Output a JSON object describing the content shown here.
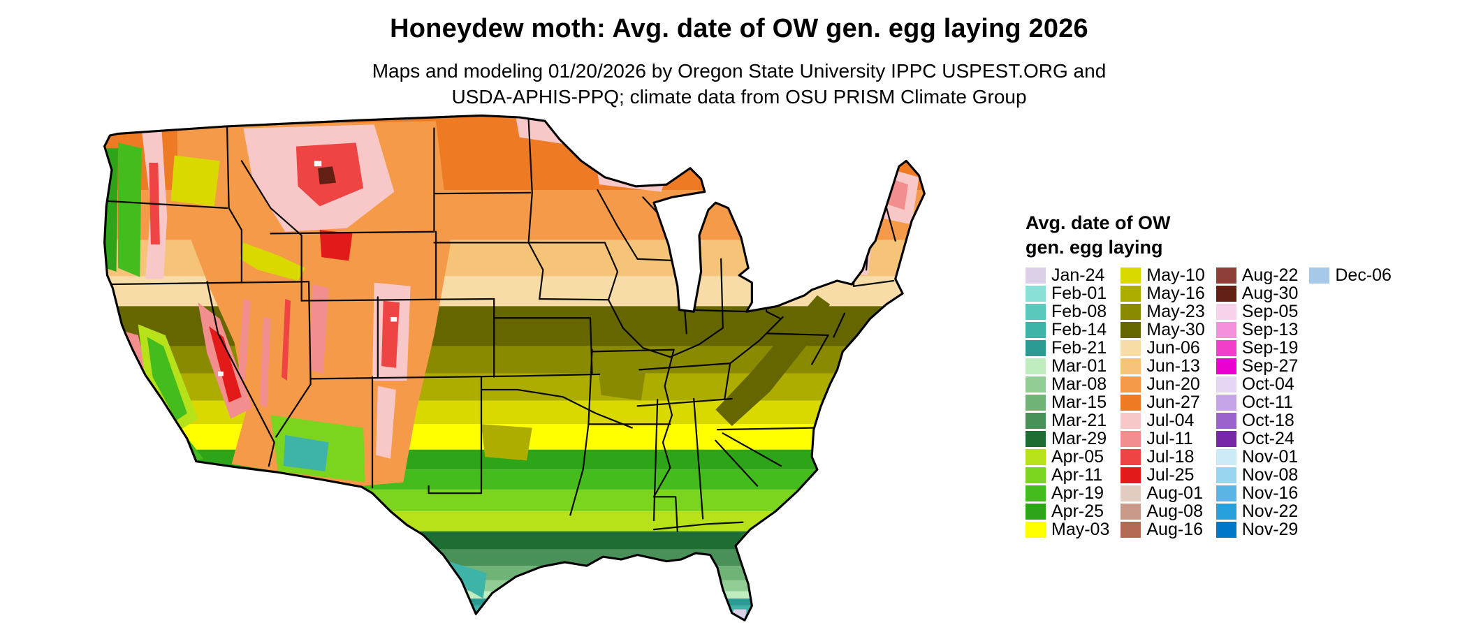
{
  "title": "Honeydew moth: Avg. date of OW gen. egg laying 2026",
  "subtitle_line1": "Maps and modeling 01/20/2026 by Oregon State University IPPC USPEST.ORG and",
  "subtitle_line2": "USDA-APHIS-PPQ; climate data from OSU PRISM Climate Group",
  "legend": {
    "title_line1": "Avg. date of OW",
    "title_line2": "gen. egg laying",
    "columns": [
      [
        {
          "label": "Jan-24",
          "color": "#DCD0E8"
        },
        {
          "label": "Feb-01",
          "color": "#8ADFD6"
        },
        {
          "label": "Feb-08",
          "color": "#5BC8BE"
        },
        {
          "label": "Feb-14",
          "color": "#3EB4A8"
        },
        {
          "label": "Feb-21",
          "color": "#2B9A92"
        },
        {
          "label": "Mar-01",
          "color": "#BFEDBF"
        },
        {
          "label": "Mar-08",
          "color": "#93CD96"
        },
        {
          "label": "Mar-15",
          "color": "#6FB377"
        },
        {
          "label": "Mar-21",
          "color": "#4A9159"
        },
        {
          "label": "Mar-29",
          "color": "#1E6E33"
        },
        {
          "label": "Apr-05",
          "color": "#B7E219"
        },
        {
          "label": "Apr-11",
          "color": "#7BD41E"
        },
        {
          "label": "Apr-19",
          "color": "#45BC1E"
        },
        {
          "label": "Apr-25",
          "color": "#2EA519"
        },
        {
          "label": "May-03",
          "color": "#FFFF00"
        }
      ],
      [
        {
          "label": "May-10",
          "color": "#D9D900"
        },
        {
          "label": "May-16",
          "color": "#ADAD00"
        },
        {
          "label": "May-23",
          "color": "#8A8A00"
        },
        {
          "label": "May-30",
          "color": "#666600"
        },
        {
          "label": "Jun-06",
          "color": "#F8DCA8"
        },
        {
          "label": "Jun-13",
          "color": "#F6C478"
        },
        {
          "label": "Jun-20",
          "color": "#F59A48"
        },
        {
          "label": "Jun-27",
          "color": "#EE7A24"
        },
        {
          "label": "Jul-04",
          "color": "#F8C8C8"
        },
        {
          "label": "Jul-11",
          "color": "#F28E8E"
        },
        {
          "label": "Jul-18",
          "color": "#EE4444"
        },
        {
          "label": "Jul-25",
          "color": "#E31A1A"
        },
        {
          "label": "Aug-01",
          "color": "#E2CBC1"
        },
        {
          "label": "Aug-08",
          "color": "#C99A89"
        },
        {
          "label": "Aug-16",
          "color": "#B26A54"
        }
      ],
      [
        {
          "label": "Aug-22",
          "color": "#8E4038"
        },
        {
          "label": "Aug-30",
          "color": "#641F14"
        },
        {
          "label": "Sep-05",
          "color": "#F8D2EA"
        },
        {
          "label": "Sep-13",
          "color": "#F490DC"
        },
        {
          "label": "Sep-19",
          "color": "#F23EC8"
        },
        {
          "label": "Sep-27",
          "color": "#EA00D0"
        },
        {
          "label": "Oct-04",
          "color": "#E6D6F5"
        },
        {
          "label": "Oct-11",
          "color": "#C5A5E5"
        },
        {
          "label": "Oct-18",
          "color": "#9B64CC"
        },
        {
          "label": "Oct-24",
          "color": "#7628A8"
        },
        {
          "label": "Nov-01",
          "color": "#CDEAF8"
        },
        {
          "label": "Nov-08",
          "color": "#9AD4F0"
        },
        {
          "label": "Nov-16",
          "color": "#5AB4E4"
        },
        {
          "label": "Nov-22",
          "color": "#28A0DC"
        },
        {
          "label": "Nov-29",
          "color": "#0078C8"
        }
      ],
      [
        {
          "label": "Dec-06",
          "color": "#A8C8E8"
        }
      ]
    ]
  }
}
